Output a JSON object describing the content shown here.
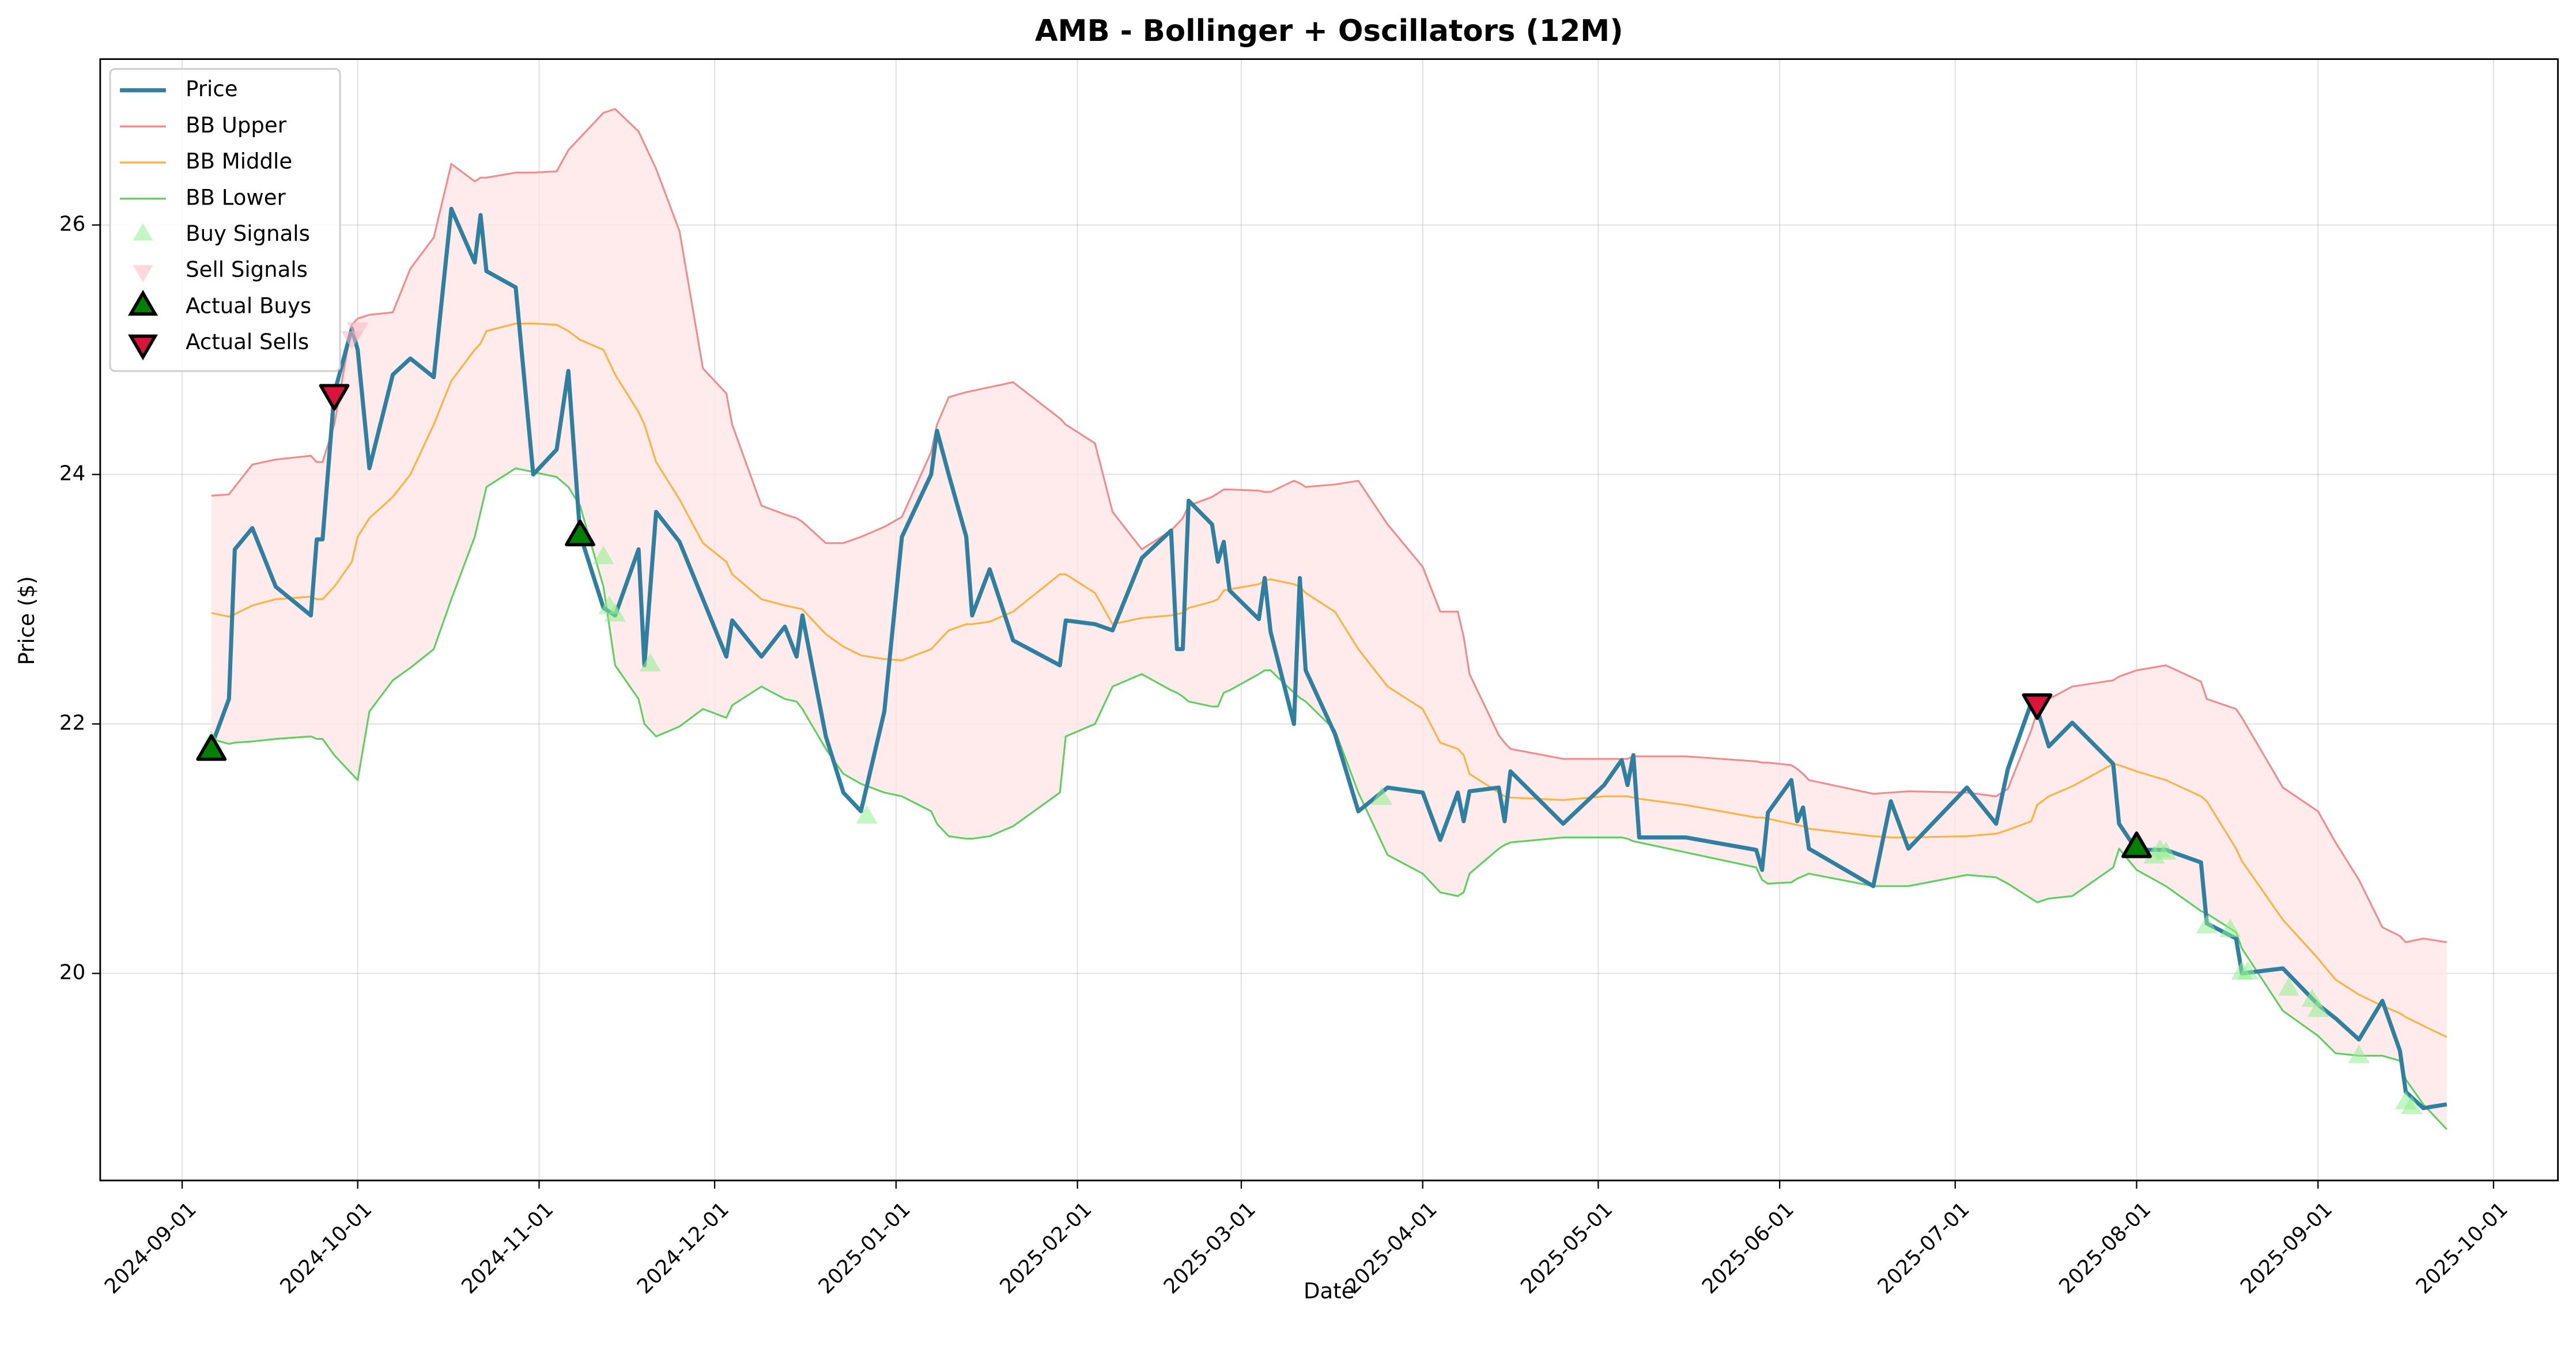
{
  "chart_data": {
    "type": "line",
    "title": "AMB - Bollinger + Oscillators (12M)",
    "x_label": "Date",
    "y_label": "Price ($)",
    "grid": true,
    "legend": "upper left",
    "band_fill": "#ffe4e6",
    "xlim": [
      "2024-08-18",
      "2025-10-12"
    ],
    "xticks": [
      "2024-09-01",
      "2024-10-01",
      "2024-11-01",
      "2024-12-01",
      "2025-01-01",
      "2025-02-01",
      "2025-03-01",
      "2025-04-01",
      "2025-05-01",
      "2025-06-01",
      "2025-07-01",
      "2025-08-01",
      "2025-09-01",
      "2025-10-01"
    ],
    "ylim": [
      18.34,
      27.33
    ],
    "yticks": [
      20,
      22,
      24,
      26
    ],
    "x": [
      "2024-09-06",
      "2024-09-09",
      "2024-09-10",
      "2024-09-13",
      "2024-09-17",
      "2024-09-23",
      "2024-09-24",
      "2024-09-25",
      "2024-09-27",
      "2024-09-30",
      "2024-10-01",
      "2024-10-03",
      "2024-10-07",
      "2024-10-10",
      "2024-10-14",
      "2024-10-17",
      "2024-10-21",
      "2024-10-22",
      "2024-10-23",
      "2024-10-28",
      "2024-10-31",
      "2024-11-04",
      "2024-11-06",
      "2024-11-08",
      "2024-11-12",
      "2024-11-14",
      "2024-11-18",
      "2024-11-19",
      "2024-11-21",
      "2024-11-25",
      "2024-11-29",
      "2024-12-03",
      "2024-12-04",
      "2024-12-09",
      "2024-12-13",
      "2024-12-15",
      "2024-12-16",
      "2024-12-20",
      "2024-12-23",
      "2024-12-26",
      "2024-12-30",
      "2025-01-02",
      "2025-01-07",
      "2025-01-08",
      "2025-01-10",
      "2025-01-13",
      "2025-01-14",
      "2025-01-17",
      "2025-01-21",
      "2025-01-29",
      "2025-01-30",
      "2025-02-04",
      "2025-02-07",
      "2025-02-12",
      "2025-02-17",
      "2025-02-18",
      "2025-02-19",
      "2025-02-20",
      "2025-02-24",
      "2025-02-25",
      "2025-02-26",
      "2025-02-27",
      "2025-03-04",
      "2025-03-05",
      "2025-03-06",
      "2025-03-10",
      "2025-03-11",
      "2025-03-12",
      "2025-03-17",
      "2025-03-21",
      "2025-03-26",
      "2025-04-01",
      "2025-04-04",
      "2025-04-07",
      "2025-04-08",
      "2025-04-09",
      "2025-04-14",
      "2025-04-15",
      "2025-04-16",
      "2025-04-25",
      "2025-05-02",
      "2025-05-05",
      "2025-05-06",
      "2025-05-07",
      "2025-05-08",
      "2025-05-16",
      "2025-05-28",
      "2025-05-29",
      "2025-05-30",
      "2025-06-03",
      "2025-06-04",
      "2025-06-05",
      "2025-06-06",
      "2025-06-17",
      "2025-06-20",
      "2025-06-23",
      "2025-07-03",
      "2025-07-08",
      "2025-07-10",
      "2025-07-14",
      "2025-07-15",
      "2025-07-17",
      "2025-07-21",
      "2025-07-28",
      "2025-07-29",
      "2025-08-01",
      "2025-08-06",
      "2025-08-12",
      "2025-08-13",
      "2025-08-18",
      "2025-08-19",
      "2025-08-26",
      "2025-09-01",
      "2025-09-04",
      "2025-09-08",
      "2025-09-12",
      "2025-09-15",
      "2025-09-16",
      "2025-09-19",
      "2025-09-23"
    ],
    "series": [
      {
        "name": "Price",
        "color": "#2e7fa0",
        "values": [
          21.82,
          22.2,
          23.4,
          23.57,
          23.1,
          22.87,
          23.48,
          23.48,
          24.65,
          25.17,
          25.0,
          24.05,
          24.8,
          24.93,
          24.78,
          26.13,
          25.7,
          26.08,
          25.63,
          25.5,
          24.0,
          24.2,
          24.83,
          23.52,
          22.93,
          22.87,
          23.4,
          22.47,
          23.7,
          23.46,
          23.0,
          22.54,
          22.83,
          22.54,
          22.78,
          22.54,
          22.87,
          21.9,
          21.45,
          21.3,
          22.1,
          23.5,
          24.0,
          24.35,
          24.0,
          23.5,
          22.87,
          23.24,
          22.67,
          22.47,
          22.83,
          22.8,
          22.75,
          23.33,
          23.55,
          22.6,
          22.6,
          23.79,
          23.6,
          23.3,
          23.46,
          23.07,
          22.84,
          23.17,
          22.74,
          22.0,
          23.17,
          22.43,
          21.92,
          21.3,
          21.49,
          21.45,
          21.07,
          21.45,
          21.22,
          21.46,
          21.49,
          21.22,
          21.62,
          21.2,
          21.51,
          21.71,
          21.51,
          21.75,
          21.09,
          21.09,
          20.99,
          20.83,
          21.29,
          21.55,
          21.22,
          21.33,
          21.0,
          20.7,
          21.38,
          21.0,
          21.49,
          21.2,
          21.64,
          22.17,
          22.12,
          21.82,
          22.01,
          21.68,
          21.2,
          20.99,
          20.99,
          20.89,
          20.4,
          20.28,
          20.0,
          20.04,
          19.75,
          19.64,
          19.47,
          19.78,
          19.38,
          19.05,
          18.92,
          18.95
        ]
      },
      {
        "name": "BB Upper",
        "color": "#f28b8b",
        "values": [
          23.83,
          23.84,
          23.9,
          24.08,
          24.12,
          24.15,
          24.1,
          24.1,
          24.4,
          25.2,
          25.25,
          25.28,
          25.3,
          25.65,
          25.9,
          26.49,
          26.35,
          26.38,
          26.38,
          26.42,
          26.42,
          26.43,
          26.6,
          26.7,
          26.9,
          26.93,
          26.75,
          26.65,
          26.45,
          25.95,
          24.85,
          24.65,
          24.4,
          23.75,
          23.68,
          23.65,
          23.62,
          23.45,
          23.45,
          23.5,
          23.58,
          23.66,
          24.18,
          24.4,
          24.62,
          24.66,
          24.67,
          24.7,
          24.74,
          24.45,
          24.4,
          24.25,
          23.7,
          23.4,
          23.55,
          23.6,
          23.65,
          23.75,
          23.82,
          23.85,
          23.88,
          23.88,
          23.87,
          23.86,
          23.86,
          23.95,
          23.93,
          23.9,
          23.92,
          23.95,
          23.6,
          23.26,
          22.9,
          22.9,
          22.7,
          22.4,
          21.91,
          21.85,
          21.8,
          21.72,
          21.72,
          21.72,
          21.72,
          21.74,
          21.74,
          21.74,
          21.7,
          21.69,
          21.69,
          21.67,
          21.64,
          21.6,
          21.55,
          21.44,
          21.45,
          21.46,
          21.45,
          21.42,
          21.48,
          21.95,
          22.1,
          22.2,
          22.3,
          22.35,
          22.38,
          22.43,
          22.47,
          22.34,
          22.2,
          22.12,
          22.05,
          21.49,
          21.3,
          21.05,
          20.75,
          20.37,
          20.3,
          20.25,
          20.28,
          20.25
        ]
      },
      {
        "name": "BB Middle",
        "color": "#ffb23f",
        "values": [
          22.89,
          22.86,
          22.88,
          22.95,
          23.0,
          23.02,
          23.0,
          23.0,
          23.1,
          23.3,
          23.5,
          23.65,
          23.82,
          24.0,
          24.4,
          24.75,
          25.0,
          25.05,
          25.15,
          25.21,
          25.21,
          25.2,
          25.15,
          25.08,
          25.0,
          24.8,
          24.5,
          24.4,
          24.1,
          23.8,
          23.45,
          23.3,
          23.2,
          23.0,
          22.95,
          22.93,
          22.92,
          22.72,
          22.62,
          22.55,
          22.52,
          22.51,
          22.6,
          22.65,
          22.75,
          22.8,
          22.8,
          22.82,
          22.9,
          23.2,
          23.2,
          23.05,
          22.8,
          22.85,
          22.87,
          22.88,
          22.89,
          22.93,
          22.98,
          23.0,
          23.07,
          23.08,
          23.12,
          23.15,
          23.16,
          23.12,
          23.1,
          23.05,
          22.9,
          22.6,
          22.3,
          22.12,
          21.85,
          21.8,
          21.75,
          21.6,
          21.45,
          21.42,
          21.41,
          21.39,
          21.42,
          21.42,
          21.42,
          21.41,
          21.4,
          21.35,
          21.25,
          21.25,
          21.24,
          21.2,
          21.19,
          21.18,
          21.16,
          21.1,
          21.09,
          21.09,
          21.1,
          21.12,
          21.15,
          21.22,
          21.35,
          21.42,
          21.5,
          21.68,
          21.67,
          21.62,
          21.55,
          21.42,
          21.38,
          21.0,
          20.9,
          20.43,
          20.12,
          19.95,
          19.83,
          19.74,
          19.68,
          19.65,
          19.58,
          19.49
        ]
      },
      {
        "name": "BB Lower",
        "color": "#5fcf5f",
        "values": [
          21.88,
          21.84,
          21.85,
          21.86,
          21.88,
          21.9,
          21.88,
          21.88,
          21.75,
          21.6,
          21.55,
          22.1,
          22.35,
          22.45,
          22.6,
          23.0,
          23.5,
          23.7,
          23.9,
          24.05,
          24.02,
          23.98,
          23.9,
          23.75,
          23.1,
          22.47,
          22.2,
          22.0,
          21.9,
          21.98,
          22.12,
          22.05,
          22.15,
          22.3,
          22.2,
          22.18,
          22.12,
          21.8,
          21.6,
          21.52,
          21.45,
          21.42,
          21.3,
          21.2,
          21.1,
          21.08,
          21.08,
          21.1,
          21.18,
          21.45,
          21.9,
          22.0,
          22.3,
          22.4,
          22.27,
          22.25,
          22.22,
          22.18,
          22.14,
          22.14,
          22.25,
          22.27,
          22.4,
          22.43,
          22.43,
          22.25,
          22.21,
          22.18,
          21.95,
          21.45,
          20.95,
          20.8,
          20.65,
          20.62,
          20.65,
          20.8,
          21.0,
          21.03,
          21.05,
          21.09,
          21.09,
          21.09,
          21.08,
          21.06,
          21.05,
          20.97,
          20.85,
          20.75,
          20.72,
          20.73,
          20.76,
          20.78,
          20.8,
          20.7,
          20.7,
          20.7,
          20.79,
          20.77,
          20.72,
          20.6,
          20.57,
          20.6,
          20.62,
          20.85,
          21.0,
          20.83,
          20.7,
          20.5,
          20.48,
          20.33,
          20.2,
          19.7,
          19.5,
          19.36,
          19.34,
          19.34,
          19.3,
          19.15,
          18.95,
          18.75
        ]
      },
      {
        "name": "Buy Signals",
        "color": "#90ee90",
        "marker": "^",
        "x": [
          "2024-09-06",
          "2024-11-12",
          "2024-11-13",
          "2024-11-14",
          "2024-11-20",
          "2024-12-27",
          "2025-03-25",
          "2025-08-04",
          "2025-08-05",
          "2025-08-06",
          "2025-08-13",
          "2025-08-17",
          "2025-08-19",
          "2025-08-20",
          "2025-08-27",
          "2025-08-31",
          "2025-09-01",
          "2025-09-08",
          "2025-09-16",
          "2025-09-17"
        ],
        "values": [
          21.85,
          23.33,
          22.93,
          22.87,
          22.47,
          21.25,
          21.4,
          20.93,
          20.98,
          20.96,
          20.37,
          20.34,
          20.0,
          20.0,
          19.87,
          19.78,
          19.7,
          19.33,
          18.96,
          18.92
        ]
      },
      {
        "name": "Sell Signals",
        "color": "#ffb6c1",
        "marker": "v",
        "x": [
          "2024-09-30",
          "2024-10-01"
        ],
        "values": [
          25.1,
          25.17
        ]
      },
      {
        "name": "Actual Buys",
        "color": "#008000",
        "marker": "^",
        "edgecolor": "#000000",
        "x": [
          "2024-09-06",
          "2024-11-08",
          "2025-08-01"
        ],
        "values": [
          21.78,
          23.5,
          21.0
        ]
      },
      {
        "name": "Actual Sells",
        "color": "#dc143c",
        "marker": "v",
        "edgecolor": "#000000",
        "x": [
          "2024-09-27",
          "2025-07-15"
        ],
        "values": [
          24.65,
          22.17
        ]
      }
    ]
  }
}
